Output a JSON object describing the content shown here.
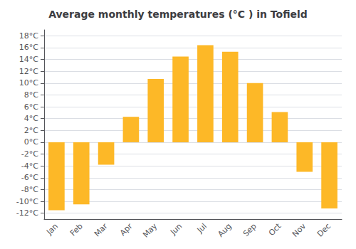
{
  "chart_data": {
    "type": "bar",
    "title": "Average monthly temperatures (°C ) in Tofield",
    "categories": [
      "Jan",
      "Feb",
      "Mar",
      "Apr",
      "May",
      "Jun",
      "Jul",
      "Aug",
      "Sep",
      "Oct",
      "Nov",
      "Dec"
    ],
    "values": [
      -11.5,
      -10.5,
      -3.8,
      4.3,
      10.7,
      14.5,
      16.4,
      15.3,
      10.0,
      5.1,
      -5.0,
      -11.2
    ],
    "color": "#FDB827",
    "ylim": [
      -13,
      19
    ],
    "yticks": [
      {
        "value": -12,
        "label": "-12°C"
      },
      {
        "value": -10,
        "label": "-10°C"
      },
      {
        "value": -8,
        "label": "-8°C"
      },
      {
        "value": -6,
        "label": "-6°C"
      },
      {
        "value": -4,
        "label": "-4°C"
      },
      {
        "value": -2,
        "label": "-2°C"
      },
      {
        "value": 0,
        "label": "0°C"
      },
      {
        "value": 2,
        "label": "2°C"
      },
      {
        "value": 4,
        "label": "4°C"
      },
      {
        "value": 6,
        "label": "6°C"
      },
      {
        "value": 8,
        "label": "8°C"
      },
      {
        "value": 10,
        "label": "10°C"
      },
      {
        "value": 12,
        "label": "12°C"
      },
      {
        "value": 14,
        "label": "14°C"
      },
      {
        "value": 16,
        "label": "16°C"
      },
      {
        "value": 18,
        "label": "18°C"
      }
    ],
    "grid": true
  }
}
